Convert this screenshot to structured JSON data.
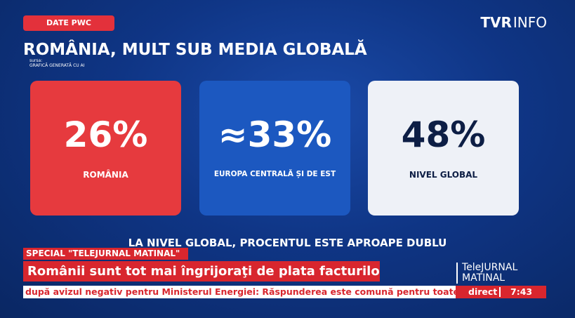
{
  "header": {
    "tag": "DATE PWC",
    "logo_brand": "TVR",
    "logo_sub": "INFO"
  },
  "title": "ROMÂNIA, MULT SUB MEDIA GLOBALĂ",
  "source": {
    "label": "sursa:",
    "text": "GRAFICĂ GENERATĂ CU AI"
  },
  "cards": [
    {
      "value": "26%",
      "label": "ROMÂNIA"
    },
    {
      "value": "≈33%",
      "label": "EUROPA CENTRALĂ ȘI DE EST"
    },
    {
      "value": "48%",
      "label": "NIVEL GLOBAL"
    }
  ],
  "caption": "LA NIVEL GLOBAL, PROCENTUL ESTE APROAPE DUBLU",
  "lower_third": {
    "kicker": "SPECIAL \"TELEJURNAL MATINAL\"",
    "headline": "Românii sunt tot mai îngrijoraţi de plata facturilor",
    "ticker": "după avizul negativ pentru Ministerul Energiei: Răspunderea este comună pentru toate forțele",
    "show": [
      "TeleJURNAL",
      "MATINAL"
    ],
    "live": "direct",
    "time": "7:43"
  }
}
